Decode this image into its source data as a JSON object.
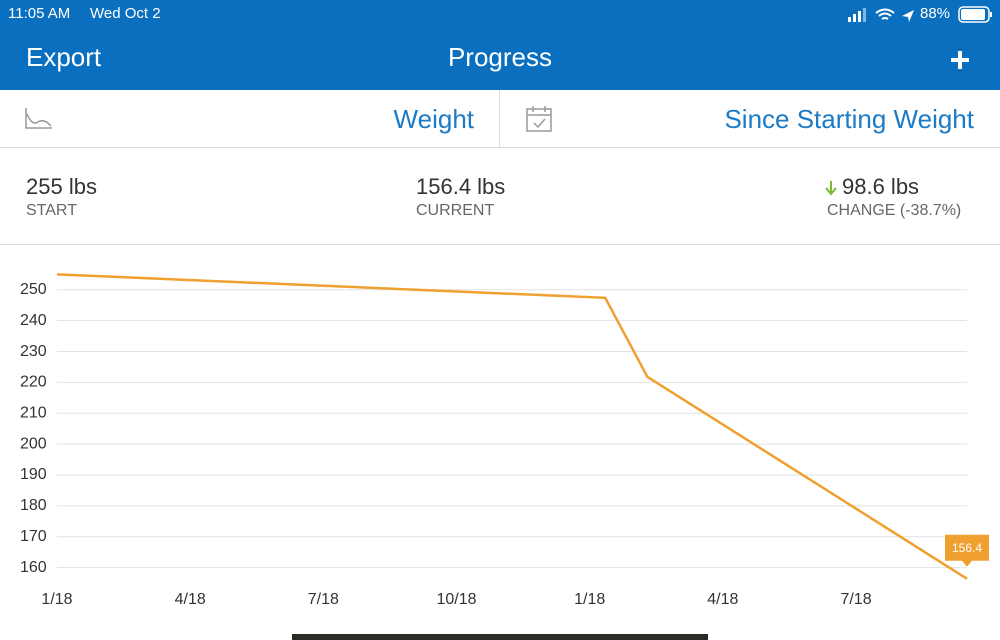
{
  "status_bar": {
    "time": "11:05 AM",
    "date": "Wed Oct 2",
    "battery": "88%"
  },
  "nav_bar": {
    "left": "Export",
    "title": "Progress"
  },
  "filter_bar": {
    "metric": "Weight",
    "range": "Since Starting Weight"
  },
  "stats": [
    {
      "value": "255 lbs",
      "label": "START"
    },
    {
      "value": "156.4 lbs",
      "label": "CURRENT"
    },
    {
      "value": "98.6 lbs",
      "label": "CHANGE (-38.7%)"
    }
  ],
  "chart_data": {
    "type": "line",
    "color": "#f0a030",
    "grid": true,
    "x": [
      0,
      12.35,
      13.3,
      20.5
    ],
    "values": [
      255,
      247.4,
      221.8,
      156.4
    ],
    "xlim": [
      0,
      20.5
    ],
    "xticks": [
      {
        "value": 0,
        "label": "1/18"
      },
      {
        "value": 3,
        "label": "4/18"
      },
      {
        "value": 6,
        "label": "7/18"
      },
      {
        "value": 9,
        "label": "10/18"
      },
      {
        "value": 12,
        "label": "1/18"
      },
      {
        "value": 15,
        "label": "4/18"
      },
      {
        "value": 18,
        "label": "7/18"
      }
    ],
    "ylim": [
      156,
      259
    ],
    "yticks": [
      160,
      170,
      180,
      190,
      200,
      210,
      220,
      230,
      240,
      250
    ]
  }
}
